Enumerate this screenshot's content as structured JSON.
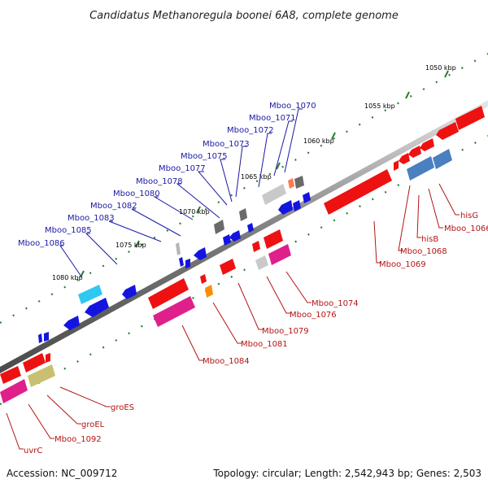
{
  "title": "Candidatus Methanoregula boonei 6A8, complete genome",
  "kbp_ticks": [
    "1050 kbp",
    "1055 kbp",
    "1060 kbp",
    "1065 kbp",
    "1070 kbp",
    "1075 kbp",
    "1080 kbp"
  ],
  "top_labels": [
    "Mboo_1070",
    "Mboo_1071",
    "Mboo_1072",
    "Mboo_1073",
    "Mboo_1075",
    "Mboo_1077",
    "Mboo_1078",
    "Mboo_1080",
    "Mboo_1082",
    "Mboo_1083",
    "Mboo_1085",
    "Mboo_1086"
  ],
  "bottom_labels": [
    "hisG",
    "Mboo_1066",
    "hisB",
    "Mboo_1068",
    "Mboo_1069",
    "Mboo_1074",
    "Mboo_1076",
    "Mboo_1079",
    "Mboo_1081",
    "Mboo_1084",
    "groES",
    "groEL",
    "Mboo_1092",
    "uvrC"
  ],
  "colors": {
    "label_top": "#1a1aa6",
    "label_bottom": "#b31414",
    "backbone": "#888888",
    "tick": "#2e7d32",
    "gene_blue": "#1414e0",
    "gene_red": "#ee1111",
    "gene_magenta": "#e0208a",
    "gene_steel": "#4a7fc0",
    "gene_cyan": "#30c8f0",
    "gene_olive": "#c8c070",
    "gene_orange": "#ff8c00",
    "gene_gray": "#9a9a9a"
  },
  "footer": {
    "accession": "Accession: NC_009712",
    "summary": "Topology: circular; Length: 2,542,943 bp; Genes: 2,503"
  }
}
